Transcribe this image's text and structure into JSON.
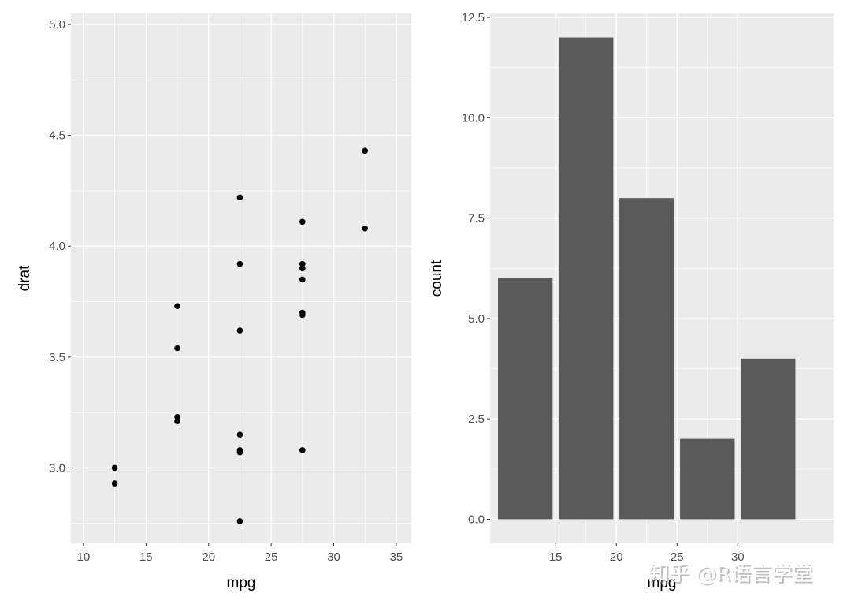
{
  "watermark": "知乎 @R语言学堂",
  "chart_data": [
    {
      "type": "scatter",
      "title": "",
      "xlabel": "mpg",
      "ylabel": "drat",
      "xlim": [
        9,
        36.2
      ],
      "ylim": [
        2.66,
        5.05
      ],
      "x_ticks": [
        10,
        15,
        20,
        25,
        30,
        35
      ],
      "y_ticks": [
        3.0,
        3.5,
        4.0,
        4.5,
        5.0
      ],
      "x_tick_labels": [
        "10",
        "15",
        "20",
        "25",
        "30",
        "35"
      ],
      "y_tick_labels": [
        "3.0",
        "3.5",
        "4.0",
        "4.5",
        "5.0"
      ],
      "grid": true,
      "points": [
        {
          "x": 12.5,
          "y": 3.0
        },
        {
          "x": 12.5,
          "y": 2.93
        },
        {
          "x": 17.5,
          "y": 3.73
        },
        {
          "x": 17.5,
          "y": 3.54
        },
        {
          "x": 17.5,
          "y": 3.23
        },
        {
          "x": 17.5,
          "y": 3.21
        },
        {
          "x": 22.5,
          "y": 4.22
        },
        {
          "x": 22.5,
          "y": 3.92
        },
        {
          "x": 22.5,
          "y": 3.62
        },
        {
          "x": 22.5,
          "y": 3.15
        },
        {
          "x": 22.5,
          "y": 3.08
        },
        {
          "x": 22.5,
          "y": 3.07
        },
        {
          "x": 22.5,
          "y": 2.76
        },
        {
          "x": 27.5,
          "y": 4.11
        },
        {
          "x": 27.5,
          "y": 3.92
        },
        {
          "x": 27.5,
          "y": 3.9
        },
        {
          "x": 27.5,
          "y": 3.85
        },
        {
          "x": 27.5,
          "y": 3.7
        },
        {
          "x": 27.5,
          "y": 3.69
        },
        {
          "x": 27.5,
          "y": 3.08
        },
        {
          "x": 32.5,
          "y": 4.43
        },
        {
          "x": 32.5,
          "y": 4.08
        }
      ]
    },
    {
      "type": "bar",
      "title": "",
      "xlabel": "mpg",
      "ylabel": "count",
      "xlim": [
        9.6,
        37.9
      ],
      "ylim": [
        -0.6,
        12.6
      ],
      "x_ticks": [
        15,
        20,
        25,
        30
      ],
      "y_ticks": [
        0.0,
        2.5,
        5.0,
        7.5,
        10.0,
        12.5
      ],
      "x_tick_labels": [
        "15",
        "20",
        "25",
        "30"
      ],
      "y_tick_labels": [
        "0.0",
        "2.5",
        "5.0",
        "7.5",
        "10.0",
        "12.5"
      ],
      "grid": true,
      "bar_color": "#595959",
      "bar_width": 4.5,
      "bars": [
        {
          "x": 12.5,
          "value": 6
        },
        {
          "x": 17.5,
          "value": 12
        },
        {
          "x": 22.5,
          "value": 8
        },
        {
          "x": 27.5,
          "value": 2
        },
        {
          "x": 32.5,
          "value": 4
        }
      ]
    }
  ]
}
